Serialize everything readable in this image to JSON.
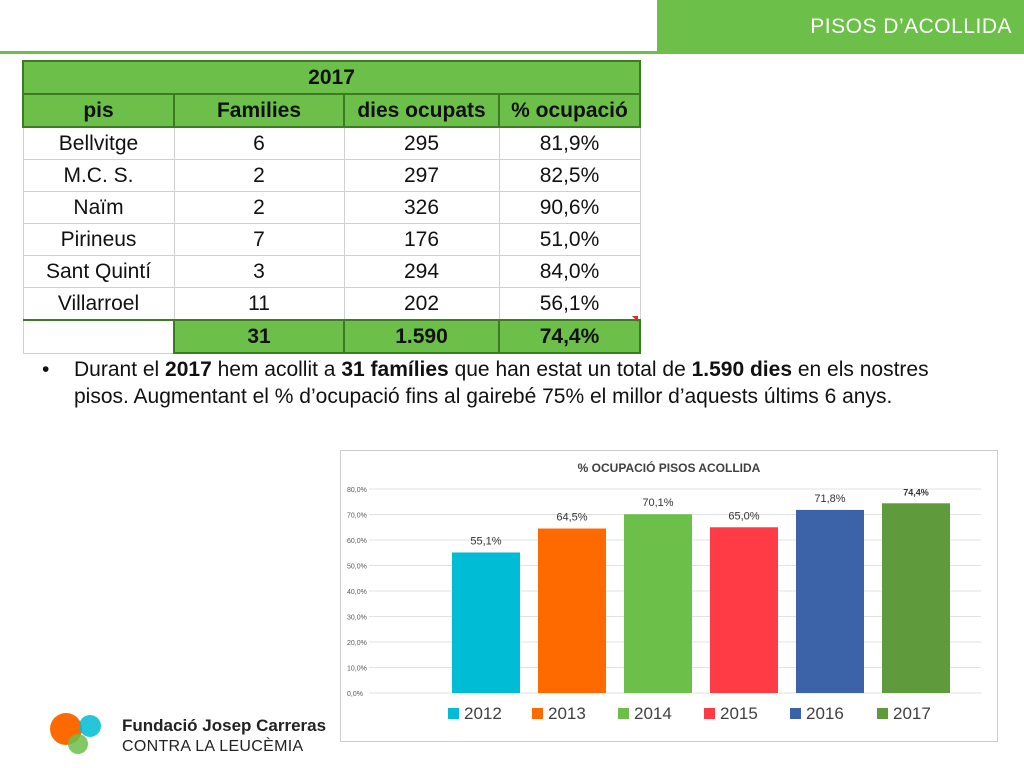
{
  "header": {
    "title": "PISOS D’ACOLLIDA"
  },
  "table": {
    "year": "2017",
    "columns": [
      "pis",
      "Families",
      "dies ocupats",
      "% ocupació"
    ],
    "rows": [
      [
        "Bellvitge",
        "6",
        "295",
        "81,9%"
      ],
      [
        "M.C. S.",
        "2",
        "297",
        "82,5%"
      ],
      [
        "Naïm",
        "2",
        "326",
        "90,6%"
      ],
      [
        "Pirineus",
        "7",
        "176",
        "51,0%"
      ],
      [
        "Sant Quintí",
        "3",
        "294",
        "84,0%"
      ],
      [
        "Villarroel",
        "11",
        "202",
        "56,1%"
      ]
    ],
    "total": [
      "",
      "31",
      "1.590",
      "74,4%"
    ]
  },
  "bullet": {
    "marker": "•",
    "t1": "Durant el ",
    "b1": "2017",
    "t2": " hem acollit a ",
    "b2": "31 famílies",
    "t3": " que han estat un total de ",
    "b3": "1.590 dies",
    "t4": " en els nostres pisos. Augmentant el % d’ocupació fins al gairebé 75% el millor d’aquests últims 6 anys."
  },
  "chart_data": {
    "type": "bar",
    "title": "% OCUPACIÓ PISOS ACOLLIDA",
    "categories": [
      "2012",
      "2013",
      "2014",
      "2015",
      "2016",
      "2017"
    ],
    "values": [
      55.1,
      64.5,
      70.1,
      65.0,
      71.8,
      74.4
    ],
    "data_labels": [
      "55,1%",
      "64,5%",
      "70,1%",
      "65,0%",
      "71,8%",
      "74,4%"
    ],
    "colors": [
      "#00bcd4",
      "#ff6a00",
      "#6cc04a",
      "#ff3b46",
      "#3c63a8",
      "#5f9a3c"
    ],
    "yticks": [
      "0,0%",
      "10,0%",
      "20,0%",
      "30,0%",
      "40,0%",
      "50,0%",
      "60,0%",
      "70,0%",
      "80,0%"
    ],
    "ylim": [
      0,
      80
    ],
    "legend": "bottom"
  },
  "logo": {
    "line1": "Fundació Josep Carreras",
    "line2": "CONTRA LA LEUCÈMIA"
  }
}
